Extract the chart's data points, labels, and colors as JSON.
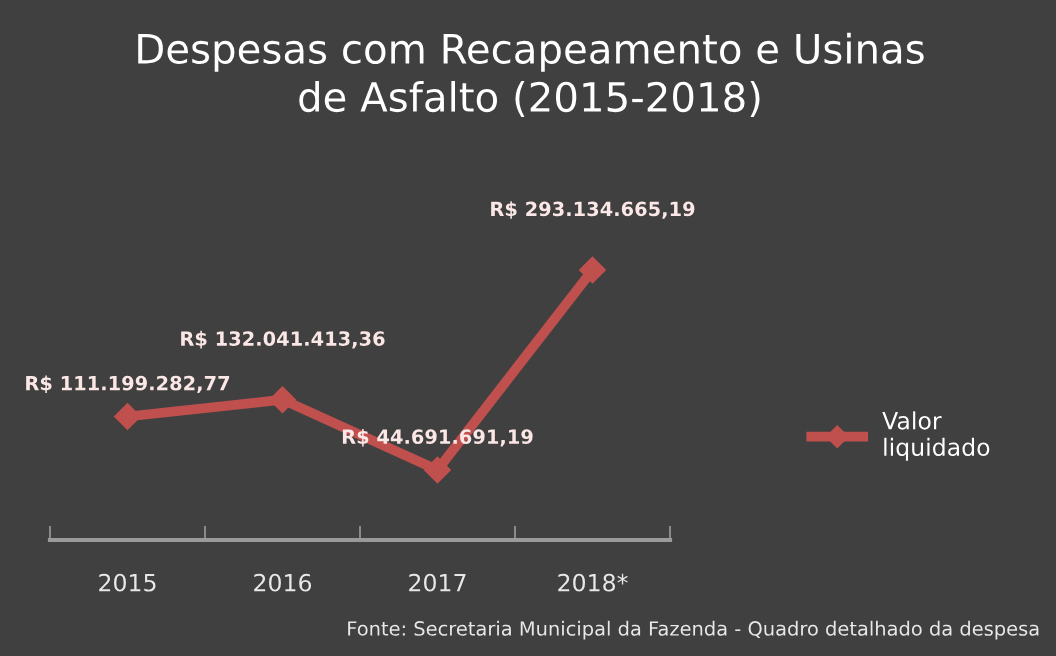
{
  "chart_data": {
    "type": "line",
    "title": "Despesas com Recapeamento e Usinas\nde Asfalto (2015-2018)",
    "categories": [
      "2015",
      "2016",
      "2017",
      "2018*"
    ],
    "series": [
      {
        "name": "Valor\nliquidado",
        "color": "#c0504d",
        "values": [
          111199282.77,
          132041413.36,
          44691691.19,
          293134665.19
        ],
        "value_labels": [
          "R$ 111.199.282,77",
          "R$ 132.041.413,36",
          "R$ 44.691.691,19",
          "R$ 293.134.665,19"
        ]
      }
    ],
    "tick_labels": "x",
    "grid": false,
    "legend": "right",
    "marker": "diamond",
    "line_style": "solid",
    "annotations": [
      "Fonte: Secretaria Municipal da Fazenda - Quadro detalhado da despesa"
    ]
  }
}
